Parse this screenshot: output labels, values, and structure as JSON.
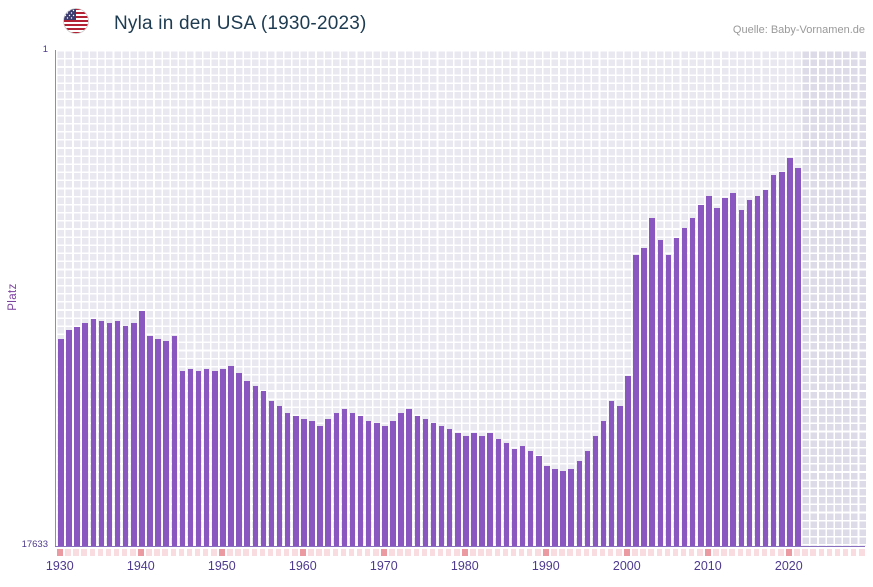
{
  "header": {
    "title": "Nyla in den USA (1930-2023)",
    "source": "Quelle: Baby-Vornamen.de"
  },
  "chart_data": {
    "type": "bar",
    "title": "Nyla in den USA (1930-2023)",
    "ylabel": "Platz",
    "y_axis": {
      "top_tick_label": "1",
      "bottom_tick_label": "17633",
      "min": 1,
      "max": 17633,
      "inverted": true,
      "scale": "linear",
      "note": "Platz 1 oben, Platz 17633 unten; Balkenhoehe = bessere Platzierung"
    },
    "x_start_year": 1930,
    "x_ticks": [
      "1930",
      "1940",
      "1950",
      "1960",
      "1970",
      "1980",
      "1990",
      "2000",
      "2010",
      "2020"
    ],
    "no_data_region": {
      "from_year": 2022,
      "to_year": 2023,
      "style": "shaded"
    },
    "colors": {
      "bar": "#8a57c1",
      "plot_background": "#e9e8f1",
      "no_data_background": "#dcdbe7",
      "year_marker": "#f8dce0",
      "decade_marker": "#ec9aa2",
      "axis_text": "#4d3a8e",
      "ylabel_text": "#7a3f9d",
      "title_text": "#1d3b51",
      "source_text": "#999999"
    },
    "series": [
      {
        "name": "Platz",
        "x": [
          1930,
          1931,
          1932,
          1933,
          1934,
          1935,
          1936,
          1937,
          1938,
          1939,
          1940,
          1941,
          1942,
          1943,
          1944,
          1945,
          1946,
          1947,
          1948,
          1949,
          1950,
          1951,
          1952,
          1953,
          1954,
          1955,
          1956,
          1957,
          1958,
          1959,
          1960,
          1961,
          1962,
          1963,
          1964,
          1965,
          1966,
          1967,
          1968,
          1969,
          1970,
          1971,
          1972,
          1973,
          1974,
          1975,
          1976,
          1977,
          1978,
          1979,
          1980,
          1981,
          1982,
          1983,
          1984,
          1985,
          1986,
          1987,
          1988,
          1989,
          1990,
          1991,
          1992,
          1993,
          1994,
          1995,
          1996,
          1997,
          1998,
          1999,
          2000,
          2001,
          2002,
          2003,
          2004,
          2005,
          2006,
          2007,
          2008,
          2009,
          2010,
          2011,
          2012,
          2013,
          2014,
          2015,
          2016,
          2017,
          2018,
          2019,
          2020,
          2021
        ],
        "values": [
          10260,
          9970,
          9830,
          9690,
          9550,
          9620,
          9690,
          9620,
          9800,
          9690,
          9260,
          10150,
          10260,
          10330,
          10150,
          11400,
          11330,
          11400,
          11330,
          11400,
          11330,
          11220,
          11470,
          11760,
          11930,
          12110,
          12470,
          12650,
          12890,
          13000,
          13110,
          13180,
          13360,
          13110,
          12890,
          12750,
          12890,
          13000,
          13180,
          13250,
          13360,
          13180,
          12890,
          12750,
          13000,
          13110,
          13250,
          13360,
          13460,
          13610,
          13710,
          13610,
          13710,
          13610,
          13820,
          13960,
          14180,
          14070,
          14250,
          14430,
          14780,
          14890,
          14960,
          14890,
          14600,
          14250,
          13710,
          13180,
          12470,
          12650,
          11580,
          7300,
          7050,
          5980,
          6770,
          7300,
          6700,
          6340,
          5980,
          5520,
          5200,
          5630,
          5270,
          5090,
          5700,
          5340,
          5200,
          4990,
          4450,
          4350,
          3850,
          4200
        ]
      }
    ]
  }
}
